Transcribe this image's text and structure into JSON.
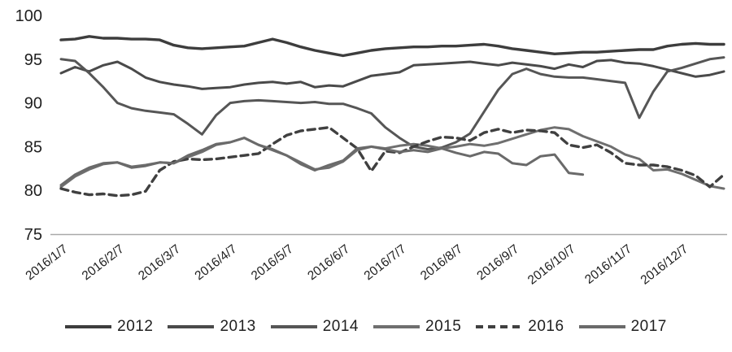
{
  "chart_data": {
    "type": "line",
    "title": "",
    "xlabel": "",
    "ylabel": "",
    "ylim": [
      75,
      100
    ],
    "grid": false,
    "legend_position": "bottom",
    "y_tick_labels": [
      "100",
      "95",
      "90",
      "85",
      "80",
      "75"
    ],
    "y_tick_values": [
      100,
      95,
      90,
      85,
      80,
      75
    ],
    "x_tick_labels": [
      "2016/1/7",
      "2016/2/7",
      "2016/3/7",
      "2016/4/7",
      "2016/5/7",
      "2016/6/7",
      "2016/7/7",
      "2016/8/7",
      "2016/9/7",
      "2016/10/7",
      "2016/11/7",
      "2016/12/7"
    ],
    "points_per_series": 48,
    "ticks_every_n_points": 4,
    "series": [
      {
        "name": "2012",
        "color": "#3d3d3d",
        "dashed": false,
        "width": 3.4,
        "values": [
          97.2,
          97.3,
          97.6,
          97.4,
          97.4,
          97.3,
          97.3,
          97.2,
          96.6,
          96.3,
          96.2,
          96.3,
          96.4,
          96.5,
          96.9,
          97.3,
          96.9,
          96.4,
          96.0,
          95.7,
          95.4,
          95.7,
          96.0,
          96.2,
          96.3,
          96.4,
          96.4,
          96.5,
          96.5,
          96.6,
          96.7,
          96.5,
          96.2,
          96.0,
          95.8,
          95.6,
          95.7,
          95.8,
          95.8,
          95.9,
          96.0,
          96.1,
          96.1,
          96.5,
          96.7,
          96.8,
          96.7,
          96.7
        ]
      },
      {
        "name": "2013",
        "color": "#4a4a4a",
        "dashed": false,
        "width": 3.0,
        "values": [
          93.4,
          94.1,
          93.6,
          94.3,
          94.7,
          93.9,
          92.9,
          92.4,
          92.1,
          91.9,
          91.6,
          91.7,
          91.8,
          92.1,
          92.3,
          92.4,
          92.2,
          92.4,
          91.8,
          92.0,
          91.9,
          92.5,
          93.1,
          93.3,
          93.5,
          94.3,
          94.4,
          94.5,
          94.6,
          94.7,
          94.5,
          94.3,
          94.6,
          94.4,
          94.2,
          93.9,
          94.4,
          94.1,
          94.8,
          94.9,
          94.6,
          94.5,
          94.2,
          93.8,
          93.4,
          93.0,
          93.2,
          93.6
        ]
      },
      {
        "name": "2014",
        "color": "#565656",
        "dashed": false,
        "width": 3.0,
        "values": [
          95.0,
          94.8,
          93.4,
          91.8,
          90.0,
          89.4,
          89.1,
          88.9,
          88.7,
          87.6,
          86.4,
          88.6,
          90.0,
          90.2,
          90.3,
          90.2,
          90.1,
          90.0,
          90.1,
          89.9,
          89.9,
          89.4,
          88.8,
          87.2,
          86.0,
          85.0,
          84.7,
          84.9,
          85.5,
          86.5,
          89.0,
          91.5,
          93.3,
          93.9,
          93.3,
          93.0,
          92.9,
          92.9,
          92.7,
          92.5,
          92.3,
          88.3,
          91.3,
          93.6,
          94.0,
          94.5,
          95.0,
          95.2
        ]
      },
      {
        "name": "2015",
        "color": "#6f6f6f",
        "dashed": false,
        "width": 3.0,
        "values": [
          80.4,
          81.6,
          82.4,
          83.0,
          83.2,
          82.7,
          82.9,
          83.2,
          83.1,
          83.8,
          84.4,
          85.2,
          85.5,
          86.0,
          85.2,
          84.6,
          84.0,
          83.2,
          82.4,
          82.6,
          83.3,
          84.6,
          85.0,
          84.8,
          85.1,
          85.3,
          85.1,
          84.8,
          85.0,
          85.3,
          85.1,
          85.4,
          85.9,
          86.4,
          86.9,
          87.2,
          87.0,
          86.2,
          85.6,
          85.0,
          84.1,
          83.6,
          82.3,
          82.4,
          81.9,
          81.2,
          80.5,
          80.2
        ]
      },
      {
        "name": "2016",
        "color": "#404040",
        "dashed": true,
        "width": 3.4,
        "values": [
          80.2,
          79.8,
          79.5,
          79.6,
          79.4,
          79.5,
          79.9,
          82.3,
          83.3,
          83.6,
          83.5,
          83.6,
          83.8,
          84.0,
          84.2,
          85.3,
          86.3,
          86.8,
          87.0,
          87.2,
          86.0,
          84.8,
          82.2,
          84.5,
          84.3,
          85.0,
          85.6,
          86.1,
          86.0,
          85.7,
          86.6,
          87.0,
          86.6,
          86.9,
          86.8,
          86.6,
          85.2,
          84.9,
          85.2,
          84.3,
          83.1,
          82.9,
          82.9,
          82.7,
          82.3,
          81.7,
          80.4,
          81.8
        ]
      },
      {
        "name": "2017",
        "color": "#6a6a6a",
        "dashed": false,
        "width": 3.0,
        "values": [
          80.6,
          81.8,
          82.6,
          83.1,
          83.2,
          82.6,
          82.8,
          83.2,
          83.1,
          84.0,
          84.6,
          85.3,
          85.5,
          86.0,
          85.2,
          84.7,
          84.0,
          83.0,
          82.3,
          82.9,
          83.4,
          84.8,
          85.0,
          84.7,
          84.4,
          84.6,
          84.4,
          84.8,
          84.3,
          83.9,
          84.4,
          84.2,
          83.1,
          82.9,
          83.9,
          84.1,
          82.0,
          81.8
        ]
      }
    ]
  },
  "colors": {
    "axis_line": "#a9a9a9",
    "tick_text": "#1f1f1f",
    "background": "#ffffff"
  }
}
